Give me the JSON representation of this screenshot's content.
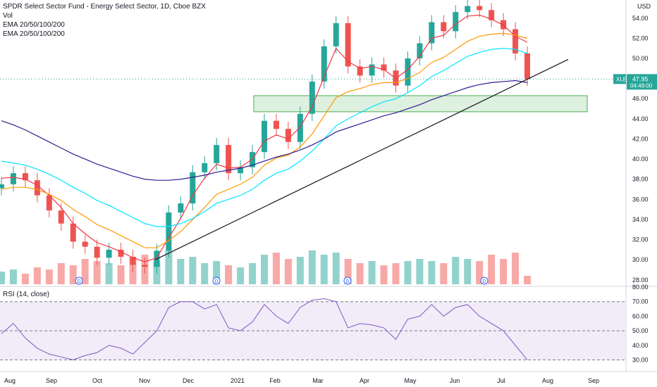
{
  "legend": {
    "title": "SPDR Select Sector Fund - Energy Select Sector, 1D, Cboe BZX",
    "vol": "Vol",
    "ema1": "EMA 20/50/100/200",
    "ema2": "EMA 20/50/100/200"
  },
  "rsi_legend": "RSI (14, close)",
  "currency": "USD",
  "last_price": {
    "symbol": "XLE",
    "price": "47.95",
    "countdown": "04:49:00"
  },
  "colors": {
    "up": "#26a69a",
    "down": "#ef5350",
    "ema20": "#f23645",
    "ema50": "#ff9800",
    "ema100": "#00e5ff",
    "ema200": "#311b92",
    "trendline": "#131722",
    "zone_fill": "#c8e6c9",
    "zone_stroke": "#4caf50",
    "rsi_line": "#7e57c2",
    "rsi_band": "#ede7f6",
    "price_tag": "#26a69a"
  },
  "chart_data": {
    "type": "line",
    "symbol": "XLE",
    "timeframe": "1D",
    "x_tick_labels": [
      "Aug",
      "Sep",
      "Oct",
      "Nov",
      "Dec",
      "2021",
      "Feb",
      "Mar",
      "Apr",
      "May",
      "Jun",
      "Jul",
      "Aug",
      "Sep"
    ],
    "price_axis": {
      "ticks": [
        "28.00",
        "30.00",
        "32.00",
        "34.00",
        "36.00",
        "38.00",
        "40.00",
        "42.00",
        "44.00",
        "46.00",
        "48.00",
        "50.00",
        "52.00",
        "54.00"
      ],
      "ylim": [
        27.5,
        55.8
      ]
    },
    "rsi_axis": {
      "ticks": [
        "30.00",
        "40.00",
        "50.00",
        "60.00",
        "70.00",
        "80.00"
      ],
      "ylim": [
        22,
        80
      ],
      "overbought": 70,
      "oversold": 30
    },
    "dividend_markers": [
      "Sep",
      "Dec",
      "Mar",
      "Jun"
    ],
    "close_weekly": [
      37.5,
      38.6,
      37.9,
      36.4,
      34.9,
      33.6,
      31.8,
      31.3,
      30.2,
      31.0,
      30.3,
      29.5,
      29.3,
      30.9,
      34.7,
      35.6,
      38.7,
      39.6,
      41.4,
      38.6,
      39.2,
      40.7,
      43.8,
      43.0,
      41.7,
      44.5,
      47.7,
      51.2,
      53.5,
      49.2,
      48.3,
      49.4,
      48.8,
      47.3,
      50.0,
      51.5,
      53.6,
      52.7,
      54.6,
      55.2,
      54.8,
      53.8,
      52.9,
      50.5,
      47.95
    ],
    "ema20_weekly": [
      38.1,
      38.2,
      38.0,
      37.4,
      36.4,
      35.2,
      33.6,
      32.6,
      31.7,
      31.3,
      30.8,
      30.2,
      29.8,
      30.2,
      32.2,
      34.1,
      36.4,
      38.1,
      39.5,
      39.1,
      39.2,
      40.0,
      41.8,
      42.4,
      42.0,
      43.2,
      45.2,
      48.2,
      51.0,
      49.7,
      49.0,
      49.2,
      48.9,
      48.0,
      48.9,
      50.2,
      52.0,
      52.3,
      53.4,
      54.2,
      54.3,
      53.9,
      53.3,
      52.2,
      51.6
    ],
    "ema50_weekly": [
      37.0,
      37.2,
      37.2,
      37.0,
      36.5,
      35.9,
      35.0,
      34.3,
      33.5,
      33.0,
      32.4,
      31.8,
      31.2,
      31.2,
      31.9,
      32.8,
      34.0,
      35.2,
      36.5,
      37.0,
      37.5,
      38.2,
      39.4,
      40.1,
      40.4,
      41.2,
      42.5,
      44.3,
      46.1,
      46.7,
      47.0,
      47.4,
      47.6,
      47.6,
      48.0,
      48.6,
      49.6,
      50.1,
      50.9,
      51.7,
      52.2,
      52.4,
      52.5,
      52.3,
      52.0
    ],
    "ema100_weekly": [
      39.8,
      39.6,
      39.4,
      39.0,
      38.5,
      37.9,
      37.2,
      36.6,
      35.9,
      35.4,
      34.8,
      34.2,
      33.6,
      33.3,
      33.3,
      33.6,
      34.1,
      34.8,
      35.6,
      36.0,
      36.4,
      37.0,
      37.9,
      38.6,
      39.0,
      39.8,
      40.8,
      42.0,
      43.3,
      44.0,
      44.6,
      45.2,
      45.7,
      46.0,
      46.6,
      47.3,
      48.2,
      48.8,
      49.5,
      50.2,
      50.6,
      50.9,
      51.0,
      50.9,
      50.5
    ],
    "ema200_weekly": [
      43.8,
      43.4,
      42.9,
      42.3,
      41.7,
      41.1,
      40.5,
      40.0,
      39.5,
      39.1,
      38.7,
      38.3,
      38.0,
      37.9,
      37.9,
      38.0,
      38.2,
      38.4,
      38.7,
      38.9,
      39.1,
      39.4,
      39.8,
      40.2,
      40.5,
      40.9,
      41.4,
      42.0,
      42.7,
      43.1,
      43.5,
      43.9,
      44.3,
      44.6,
      45.0,
      45.4,
      45.9,
      46.3,
      46.7,
      47.1,
      47.4,
      47.6,
      47.7,
      47.8,
      47.6
    ],
    "volume_relative": [
      0.3,
      0.35,
      0.25,
      0.4,
      0.35,
      0.5,
      0.45,
      0.6,
      0.55,
      0.5,
      0.45,
      0.65,
      0.7,
      0.55,
      0.8,
      0.6,
      0.65,
      0.5,
      0.55,
      0.45,
      0.4,
      0.5,
      0.7,
      0.75,
      0.6,
      0.65,
      0.8,
      0.7,
      0.75,
      0.6,
      0.5,
      0.55,
      0.45,
      0.5,
      0.55,
      0.6,
      0.55,
      0.5,
      0.65,
      0.6,
      0.55,
      0.7,
      0.6,
      0.75,
      0.2
    ],
    "rsi_weekly": [
      48,
      55,
      45,
      38,
      34,
      32,
      30,
      33,
      35,
      40,
      38,
      34,
      42,
      50,
      66,
      70,
      70,
      65,
      68,
      52,
      50,
      56,
      68,
      60,
      55,
      66,
      71,
      72,
      70,
      52,
      55,
      54,
      52,
      44,
      58,
      60,
      68,
      60,
      66,
      68,
      60,
      55,
      50,
      40,
      30
    ],
    "support_zone": {
      "from": 44.7,
      "to": 46.3
    },
    "trendline": {
      "start_price": 30.0,
      "end_price": 49.9
    }
  }
}
